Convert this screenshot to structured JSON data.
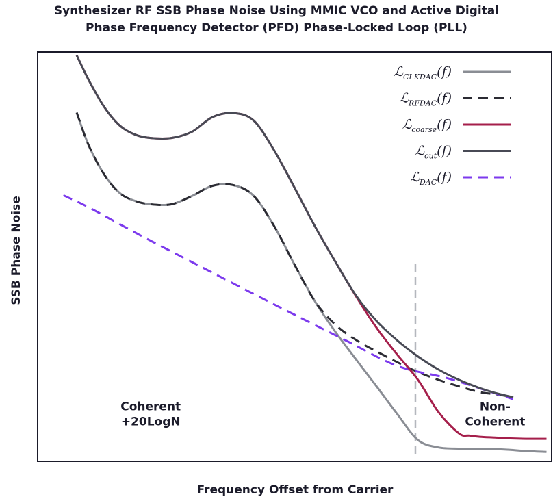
{
  "chart_data": {
    "type": "line",
    "title_lines": [
      "Synthesizer RF SSB Phase Noise Using MMIC VCO and Active Digital",
      "Phase Frequency Detector (PFD) Phase-Locked Loop (PLL)"
    ],
    "xlabel": "Frequency Offset from Carrier",
    "ylabel": "SSB Phase Noise",
    "xlim": [
      0,
      100
    ],
    "ylim": [
      0,
      100
    ],
    "grid": false,
    "legend_position": "top-right",
    "series": [
      {
        "name": "CLKDAC",
        "label_base": "ℒ",
        "label_sub": "CLKDAC",
        "label_arg": "(f)",
        "color": "#8a8d94",
        "dash": "solid",
        "x": [
          7.6,
          10,
          13,
          16,
          19,
          22,
          26,
          30,
          34,
          38,
          42,
          46,
          50,
          54,
          58,
          62,
          66,
          70,
          74,
          78,
          82,
          84,
          86,
          89,
          92,
          95,
          99
        ],
        "y": [
          85.2,
          77,
          70,
          65.5,
          63.6,
          62.8,
          62.8,
          64.8,
          67.3,
          67.5,
          64.9,
          57.5,
          48,
          39,
          31.5,
          24.8,
          18.2,
          11.5,
          5.2,
          3.4,
          3.1,
          3.1,
          3.1,
          3,
          2.8,
          2.5,
          2.3
        ]
      },
      {
        "name": "RFDAC",
        "label_base": "ℒ",
        "label_sub": "RFDAC",
        "label_arg": "(f)",
        "color": "#2b2b33",
        "dash": "dashed",
        "x": [
          7.6,
          10,
          13,
          16,
          19,
          22,
          26,
          30,
          34,
          38,
          42,
          46,
          50,
          54,
          58,
          62,
          66,
          70,
          74,
          78,
          82,
          86,
          89,
          92,
          92.5
        ],
        "y": [
          85.2,
          77,
          70,
          65.5,
          63.6,
          62.8,
          62.8,
          64.8,
          67.3,
          67.5,
          64.9,
          57.5,
          48,
          39,
          33.3,
          29.6,
          26.8,
          24.2,
          21.8,
          19.9,
          18.3,
          16.9,
          16.4,
          15.8,
          15.5
        ]
      },
      {
        "name": "coarse",
        "label_base": "ℒ",
        "label_sub": "coarse",
        "label_arg": "(f)",
        "color": "#a51f4b",
        "dash": "solid",
        "x": [
          7.6,
          10,
          13,
          16,
          19,
          22,
          26,
          30,
          34,
          38,
          42,
          46,
          50,
          54,
          58,
          62,
          66,
          70,
          74,
          78,
          82,
          84,
          86,
          89,
          92,
          95,
          99
        ],
        "y": [
          99.2,
          93,
          86.5,
          82,
          79.8,
          79,
          79,
          80.5,
          84.1,
          85.1,
          83.3,
          76,
          66.8,
          57.3,
          48.6,
          40.2,
          32.5,
          26,
          19.9,
          12,
          6.8,
          6.3,
          6,
          5.8,
          5.6,
          5.5,
          5.5
        ]
      },
      {
        "name": "out",
        "label_base": "ℒ",
        "label_sub": "out",
        "label_arg": "(f)",
        "color": "#484a55",
        "dash": "solid",
        "x": [
          7.6,
          10,
          13,
          16,
          19,
          22,
          26,
          30,
          34,
          38,
          42,
          46,
          50,
          54,
          58,
          62,
          66,
          70,
          74,
          78,
          82,
          86,
          89,
          92,
          92.5
        ],
        "y": [
          99.2,
          93,
          86.5,
          82,
          79.8,
          79,
          79,
          80.5,
          84.1,
          85.1,
          83.3,
          76,
          66.8,
          57.3,
          48.6,
          40.4,
          34.2,
          29.5,
          25.6,
          22.4,
          19.9,
          17.9,
          16.7,
          15.8,
          15.6
        ]
      },
      {
        "name": "DAC",
        "label_base": "ℒ",
        "label_sub": "DAC",
        "label_arg": "(f)",
        "color": "#7c3aed",
        "dash": "dashed",
        "x": [
          5,
          10,
          20,
          30,
          40,
          50,
          60,
          70,
          80,
          90,
          92.5
        ],
        "y": [
          65,
          62,
          55.2,
          48.7,
          42.2,
          35.8,
          29.5,
          23.3,
          20.2,
          16.2,
          15.2
        ]
      }
    ],
    "vertical_marker": {
      "x": 73.5,
      "color": "#b4b7bd",
      "dash": "dashed"
    },
    "annotations": [
      {
        "text_lines": [
          "Coherent",
          "+20LogN"
        ],
        "x": 22,
        "y": 12.5
      },
      {
        "text_lines": [
          "Non-",
          "Coherent"
        ],
        "x": 89,
        "y": 12.5
      }
    ]
  }
}
